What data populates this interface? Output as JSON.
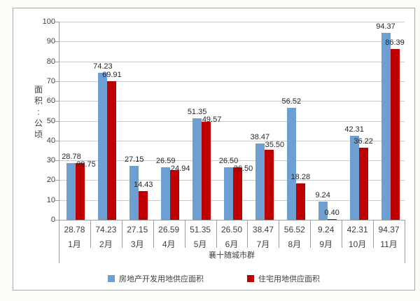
{
  "page": {
    "background": "#FBFBF8"
  },
  "chart_data": {
    "type": "bar",
    "title": "",
    "categories": [
      "1月",
      "2月",
      "3月",
      "4月",
      "5月",
      "6月",
      "7月",
      "8月",
      "9月",
      "10月",
      "11月"
    ],
    "series": [
      {
        "name": "房地产开发用地供应面积",
        "color": "#6D9FD3",
        "values": [
          28.78,
          74.23,
          27.15,
          26.59,
          51.35,
          26.5,
          38.47,
          56.52,
          9.24,
          42.31,
          94.37
        ]
      },
      {
        "name": "住宅用地供应面积",
        "color": "#C00000",
        "values": [
          28.75,
          69.91,
          14.43,
          24.94,
          49.57,
          26.5,
          35.5,
          18.28,
          0.4,
          36.22,
          86.39
        ]
      }
    ],
    "xlabel": "襄十随城市群",
    "ylabel": "面积:公顷",
    "ylim": [
      0,
      100
    ],
    "yticks": [
      0,
      10,
      20,
      30,
      40,
      50,
      60,
      70,
      80,
      90,
      100
    ],
    "grid": true,
    "legend_position": "bottom",
    "data_table": {
      "values": [
        "28.78",
        "74.23",
        "27.15",
        "26.59",
        "51.35",
        "26.50",
        "38.47",
        "56.52",
        "9.24",
        "42.31",
        "94.37"
      ]
    },
    "colors": {
      "grid": "#C9C9C9",
      "axis": "#9E9E9E",
      "text": "#3F3F3F",
      "frame_border": "#A9A9A9"
    }
  }
}
